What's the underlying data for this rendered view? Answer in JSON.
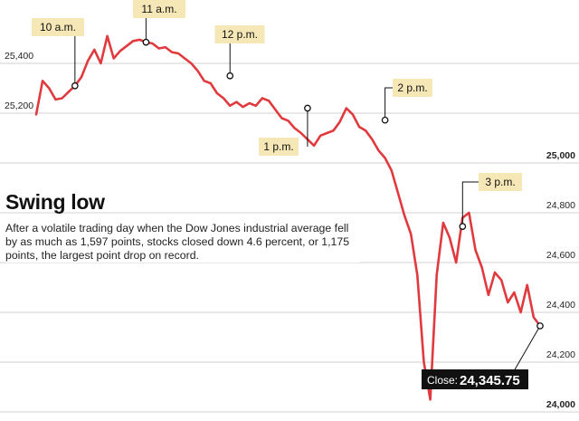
{
  "chart_data": {
    "type": "line",
    "title": "Swing low",
    "subtitle": "After a volatile trading day when the Dow Jones industrial average fell by as much as 1,597 points, stocks closed down 4.6 percent, or 1,175 points, the largest point drop on record.",
    "xlabel": "",
    "ylabel": "",
    "x_range": [
      "9:30 a.m.",
      "4 p.m."
    ],
    "ylim": [
      23980,
      25530
    ],
    "y_ticks": [
      {
        "value": 24000,
        "label": "24,000",
        "side": "right",
        "major": true
      },
      {
        "value": 24200,
        "label": "24,200",
        "side": "right",
        "major": false
      },
      {
        "value": 24400,
        "label": "24,400",
        "side": "right",
        "major": false
      },
      {
        "value": 24600,
        "label": "24,600",
        "side": "right",
        "major": false
      },
      {
        "value": 24800,
        "label": "24,800",
        "side": "right",
        "major": false
      },
      {
        "value": 25000,
        "label": "25,000",
        "side": "right",
        "major": true
      },
      {
        "value": 25200,
        "label": "25,200",
        "side": "left",
        "major": false
      },
      {
        "value": 25400,
        "label": "25,400",
        "side": "left",
        "major": false
      }
    ],
    "grid": true,
    "line_color": "#e03a3e",
    "series": [
      {
        "name": "",
        "x": [
          "9:30",
          "9:35",
          "9:40",
          "9:45",
          "9:50",
          "9:55",
          "10:00",
          "10:05",
          "10:10",
          "10:15",
          "10:20",
          "10:25",
          "10:30",
          "10:35",
          "10:40",
          "10:45",
          "10:50",
          "10:55",
          "11:00",
          "11:05",
          "11:10",
          "11:15",
          "11:20",
          "11:25",
          "11:30",
          "11:35",
          "11:40",
          "11:45",
          "11:50",
          "11:55",
          "12:00",
          "12:05",
          "12:10",
          "12:15",
          "12:20",
          "12:25",
          "12:30",
          "12:35",
          "12:40",
          "12:45",
          "12:50",
          "12:55",
          "13:00",
          "13:05",
          "13:10",
          "13:15",
          "13:20",
          "13:25",
          "13:30",
          "13:35",
          "13:40",
          "13:45",
          "13:50",
          "13:55",
          "14:00",
          "14:05",
          "14:10",
          "14:15",
          "14:20",
          "14:25",
          "14:30",
          "14:35",
          "14:40",
          "14:45",
          "14:50",
          "14:55",
          "15:00",
          "15:05",
          "15:10",
          "15:15",
          "15:20",
          "15:25",
          "15:30",
          "15:35",
          "15:40",
          "15:45",
          "15:50",
          "15:55",
          "16:00"
        ],
        "values": [
          25195,
          25330,
          25300,
          25255,
          25260,
          25285,
          25310,
          25345,
          25410,
          25455,
          25400,
          25510,
          25420,
          25450,
          25470,
          25490,
          25495,
          25485,
          25480,
          25460,
          25465,
          25445,
          25440,
          25420,
          25400,
          25370,
          25330,
          25320,
          25280,
          25260,
          25230,
          25245,
          25225,
          25240,
          25230,
          25260,
          25250,
          25215,
          25180,
          25170,
          25140,
          25120,
          25095,
          25070,
          25110,
          25120,
          25130,
          25165,
          25220,
          25195,
          25145,
          25130,
          25095,
          25050,
          25020,
          24970,
          24880,
          24790,
          24715,
          24550,
          24200,
          24050,
          24550,
          24760,
          24700,
          24600,
          24780,
          24800,
          24650,
          24580,
          24470,
          24560,
          24530,
          24440,
          24480,
          24400,
          24510,
          24380,
          24345.75
        ]
      }
    ],
    "annotations": [
      {
        "label": "10 a.m.",
        "x": "10:00",
        "value": 25310
      },
      {
        "label": "11 a.m.",
        "x": "10:55",
        "value": 25485
      },
      {
        "label": "12 p.m.",
        "x": "12:00",
        "value": 25350
      },
      {
        "label": "1 p.m.",
        "x": "13:00",
        "value": 25220
      },
      {
        "label": "2 p.m.",
        "x": "14:00",
        "value": 25172
      },
      {
        "label": "3 p.m.",
        "x": "15:00",
        "value": 24745
      }
    ],
    "close_prefix": "Close:",
    "close_value": "24,345.75"
  }
}
